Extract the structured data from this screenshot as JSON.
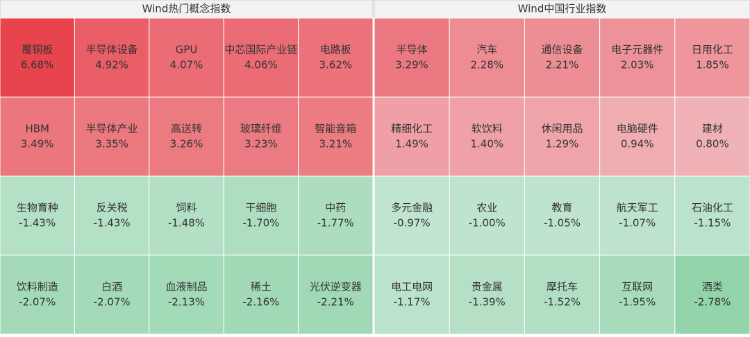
{
  "chart_data": [
    {
      "type": "heatmap",
      "title": "Wind热门概念指数",
      "columns": 5,
      "categories": [
        "覆铜板",
        "半导体设备",
        "GPU",
        "中芯国际产业链",
        "电路板",
        "HBM",
        "半导体产业",
        "高送转",
        "玻璃纤维",
        "智能音箱",
        "生物育种",
        "反关税",
        "饲料",
        "干细胞",
        "中药",
        "饮料制造",
        "白酒",
        "血液制品",
        "稀土",
        "光伏逆变器"
      ],
      "values": [
        6.68,
        4.92,
        4.07,
        4.06,
        3.62,
        3.49,
        3.35,
        3.26,
        3.23,
        3.21,
        -1.43,
        -1.43,
        -1.48,
        -1.7,
        -1.77,
        -2.07,
        -2.07,
        -2.13,
        -2.16,
        -2.21
      ],
      "value_labels": [
        "6.68%",
        "4.92%",
        "4.07%",
        "4.06%",
        "3.62%",
        "3.49%",
        "3.35%",
        "3.26%",
        "3.23%",
        "3.21%",
        "-1.43%",
        "-1.43%",
        "-1.48%",
        "-1.70%",
        "-1.77%",
        "-2.07%",
        "-2.07%",
        "-2.13%",
        "-2.16%",
        "-2.21%"
      ]
    },
    {
      "type": "heatmap",
      "title": "Wind中国行业指数",
      "columns": 5,
      "categories": [
        "半导体",
        "汽车",
        "通信设备",
        "电子元器件",
        "日用化工",
        "精细化工",
        "软饮料",
        "休闲用品",
        "电脑硬件",
        "建材",
        "多元金融",
        "农业",
        "教育",
        "航天军工",
        "石油化工",
        "电工电网",
        "贵金属",
        "摩托车",
        "互联网",
        "酒类"
      ],
      "values": [
        3.29,
        2.28,
        2.21,
        2.03,
        1.85,
        1.49,
        1.4,
        1.29,
        0.94,
        0.8,
        -0.97,
        -1.0,
        -1.05,
        -1.07,
        -1.15,
        -1.17,
        -1.39,
        -1.52,
        -1.95,
        -2.78
      ],
      "value_labels": [
        "3.29%",
        "2.28%",
        "2.21%",
        "2.03%",
        "1.85%",
        "1.49%",
        "1.40%",
        "1.29%",
        "0.94%",
        "0.80%",
        "-0.97%",
        "-1.00%",
        "-1.05%",
        "-1.07%",
        "-1.15%",
        "-1.17%",
        "-1.39%",
        "-1.52%",
        "-1.95%",
        "-2.78%"
      ]
    }
  ]
}
